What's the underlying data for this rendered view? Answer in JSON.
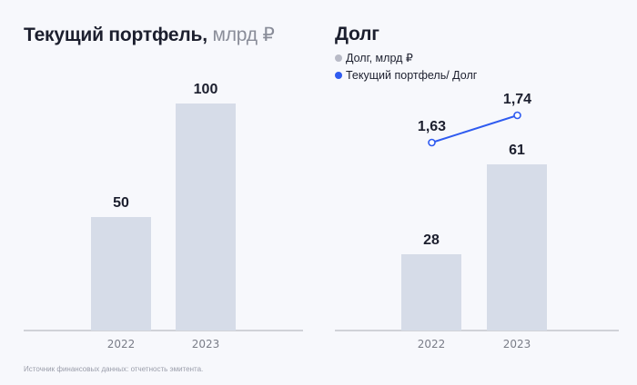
{
  "source_note": "Источник финансовых данных: отчетность эмитента.",
  "colors": {
    "background": "#f7f8fc",
    "bar": "#d6dce8",
    "line": "#2f5bf0",
    "axis": "#d0d2d8",
    "legend_debt": "#b8bac6"
  },
  "chart_data": [
    {
      "type": "bar",
      "title": "Текущий портфель,",
      "title_unit": "млрд ₽",
      "categories": [
        "2022",
        "2023"
      ],
      "values": [
        50,
        100
      ],
      "value_labels": [
        "50",
        "100"
      ],
      "ylim": [
        0,
        100
      ]
    },
    {
      "type": "bar+line",
      "title": "Долг",
      "categories": [
        "2022",
        "2023"
      ],
      "legend": [
        "Долг, млрд ₽",
        "Текущий портфель/ Долг"
      ],
      "series": [
        {
          "name": "Долг, млрд ₽",
          "type": "bar",
          "values": [
            28,
            61
          ],
          "value_labels": [
            "28",
            "61"
          ]
        },
        {
          "name": "Текущий портфель/ Долг",
          "type": "line",
          "values": [
            1.63,
            1.74
          ],
          "value_labels": [
            "1,63",
            "1,74"
          ]
        }
      ],
      "ylim": [
        0,
        61
      ]
    }
  ]
}
